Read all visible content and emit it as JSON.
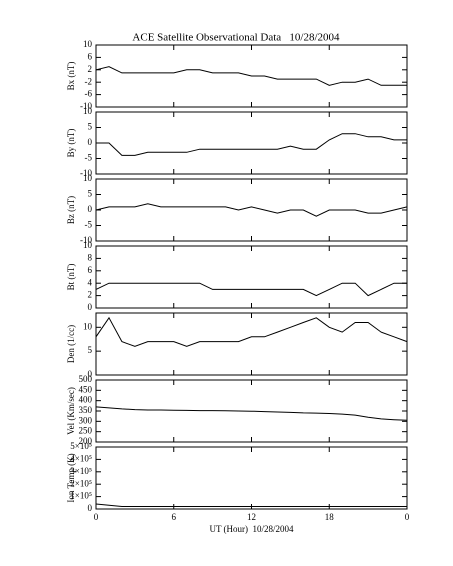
{
  "title": "ACE Satellite Observational Data   10/28/2004",
  "chart_data": [
    {
      "type": "line",
      "ylabel": "Bx (nT)",
      "xlim": [
        0,
        24
      ],
      "ylim": [
        -10,
        10
      ],
      "yticks": [
        -10,
        -6,
        -2,
        2,
        6,
        10
      ],
      "x": [
        0,
        1,
        2,
        3,
        4,
        5,
        6,
        7,
        8,
        9,
        10,
        11,
        12,
        13,
        14,
        15,
        16,
        17,
        18,
        19,
        20,
        21,
        22,
        23,
        24
      ],
      "values": [
        2,
        3,
        1,
        1,
        1,
        1,
        1,
        2,
        2,
        1,
        1,
        1,
        0,
        0,
        -1,
        -1,
        -1,
        -1,
        -3,
        -2,
        -2,
        -1,
        -3,
        -3,
        -3
      ],
      "color": "#000000"
    },
    {
      "type": "line",
      "ylabel": "By (nT)",
      "xlim": [
        0,
        24
      ],
      "ylim": [
        -10,
        10
      ],
      "yticks": [
        -10,
        -5,
        0,
        5,
        10
      ],
      "x": [
        0,
        1,
        2,
        3,
        4,
        5,
        6,
        7,
        8,
        9,
        10,
        11,
        12,
        13,
        14,
        15,
        16,
        17,
        18,
        19,
        20,
        21,
        22,
        23,
        24
      ],
      "values": [
        0,
        0,
        -4,
        -4,
        -3,
        -3,
        -3,
        -3,
        -2,
        -2,
        -2,
        -2,
        -2,
        -2,
        -2,
        -1,
        -2,
        -2,
        1,
        3,
        3,
        2,
        2,
        1,
        1
      ],
      "color": "#000000"
    },
    {
      "type": "line",
      "ylabel": "Bz (nT)",
      "xlim": [
        0,
        24
      ],
      "ylim": [
        -10,
        10
      ],
      "yticks": [
        -10,
        -5,
        0,
        5,
        10
      ],
      "x": [
        0,
        1,
        2,
        3,
        4,
        5,
        6,
        7,
        8,
        9,
        10,
        11,
        12,
        13,
        14,
        15,
        16,
        17,
        18,
        19,
        20,
        21,
        22,
        23,
        24
      ],
      "values": [
        0,
        1,
        1,
        1,
        2,
        1,
        1,
        1,
        1,
        1,
        1,
        0,
        1,
        0,
        -1,
        0,
        0,
        -2,
        0,
        0,
        0,
        -1,
        -1,
        0,
        1
      ],
      "color": "#000000"
    },
    {
      "type": "line",
      "ylabel": "Bt (nT)",
      "xlim": [
        0,
        24
      ],
      "ylim": [
        0,
        10
      ],
      "yticks": [
        0,
        2,
        4,
        6,
        8,
        10
      ],
      "x": [
        0,
        1,
        2,
        3,
        4,
        5,
        6,
        7,
        8,
        9,
        10,
        11,
        12,
        13,
        14,
        15,
        16,
        17,
        18,
        19,
        20,
        21,
        22,
        23,
        24
      ],
      "values": [
        3,
        4,
        4,
        4,
        4,
        4,
        4,
        4,
        4,
        3,
        3,
        3,
        3,
        3,
        3,
        3,
        3,
        2,
        3,
        4,
        4,
        2,
        3,
        4,
        4
      ],
      "color": "#000000"
    },
    {
      "type": "line",
      "ylabel": "Den (1/cc)",
      "xlim": [
        0,
        24
      ],
      "ylim": [
        0,
        13
      ],
      "yticks": [
        0,
        5,
        10
      ],
      "x": [
        0,
        1,
        2,
        3,
        4,
        5,
        6,
        7,
        8,
        9,
        10,
        11,
        12,
        13,
        14,
        15,
        16,
        17,
        18,
        19,
        20,
        21,
        22,
        23,
        24
      ],
      "values": [
        8,
        12,
        7,
        6,
        7,
        7,
        7,
        6,
        7,
        7,
        7,
        7,
        8,
        8,
        9,
        10,
        11,
        12,
        10,
        9,
        11,
        11,
        9,
        8,
        7
      ],
      "color": "#000000"
    },
    {
      "type": "line",
      "ylabel": "Vel (Km/sec)",
      "xlim": [
        0,
        24
      ],
      "ylim": [
        200,
        500
      ],
      "yticks": [
        200,
        250,
        300,
        350,
        400,
        450,
        500
      ],
      "x": [
        0,
        1,
        2,
        3,
        4,
        5,
        6,
        7,
        8,
        9,
        10,
        11,
        12,
        13,
        14,
        15,
        16,
        17,
        18,
        19,
        20,
        21,
        22,
        23,
        24
      ],
      "values": [
        370,
        365,
        360,
        357,
        355,
        355,
        354,
        353,
        352,
        352,
        351,
        350,
        349,
        347,
        345,
        343,
        341,
        340,
        338,
        335,
        330,
        320,
        312,
        308,
        305
      ],
      "color": "#000000"
    },
    {
      "type": "line",
      "ylabel": "Ion Temp (K)",
      "xlim": [
        0,
        24
      ],
      "ylim": [
        0,
        500000
      ],
      "yticks": [
        0,
        {
          "value": 100000,
          "label": "1×10⁵"
        },
        {
          "value": 200000,
          "label": "2×10⁵"
        },
        {
          "value": 300000,
          "label": "3×10⁵"
        },
        {
          "value": 400000,
          "label": "4×10⁵"
        },
        {
          "value": 500000,
          "label": "5×10⁵"
        }
      ],
      "x": [
        0,
        1,
        2,
        3,
        4,
        5,
        6,
        7,
        8,
        9,
        10,
        11,
        12,
        13,
        14,
        15,
        16,
        17,
        18,
        19,
        20,
        21,
        22,
        23,
        24
      ],
      "values": [
        40000,
        30000,
        20000,
        20000,
        20000,
        20000,
        20000,
        20000,
        20000,
        20000,
        20000,
        20000,
        20000,
        20000,
        20000,
        20000,
        20000,
        20000,
        20000,
        20000,
        20000,
        20000,
        20000,
        20000,
        20000
      ],
      "color": "#000000",
      "xticks": [
        0,
        6,
        12,
        18,
        {
          "value": 24,
          "label": "0"
        }
      ],
      "xlabel": "UT (Hour)  10/28/2004"
    }
  ]
}
